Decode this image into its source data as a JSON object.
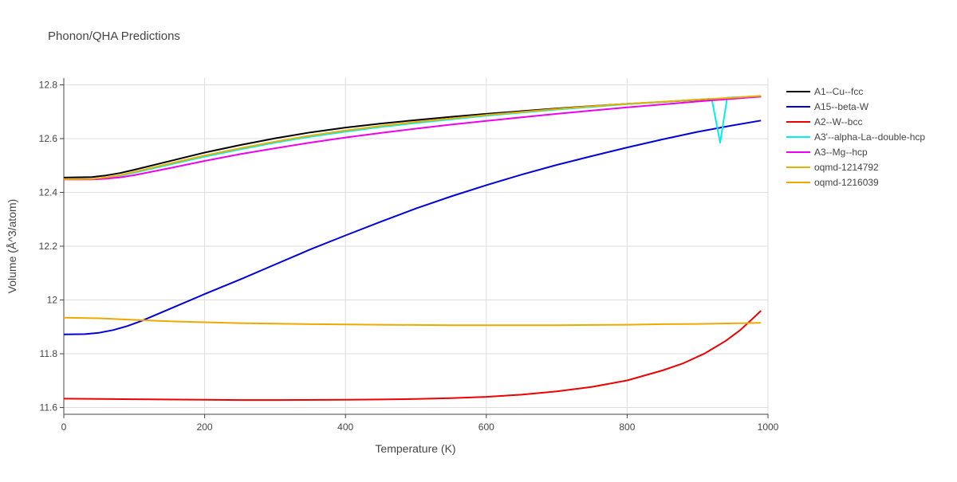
{
  "chart_data": {
    "type": "line",
    "title": "Phonon/QHA Predictions",
    "xlabel": "Temperature (K)",
    "ylabel": "Volume (Å^3/atom)",
    "xlim": [
      0,
      1000
    ],
    "ylim": [
      11.575,
      12.825
    ],
    "x_ticks": [
      0,
      200,
      400,
      600,
      800,
      1000
    ],
    "y_ticks": [
      11.6,
      11.8,
      12,
      12.2,
      12.4,
      12.6,
      12.8
    ],
    "x_tick_labels": [
      "0",
      "200",
      "400",
      "600",
      "800",
      "1000"
    ],
    "y_tick_labels": [
      "11.6",
      "11.8",
      "12",
      "12.2",
      "12.4",
      "12.6",
      "12.8"
    ],
    "grid": true,
    "legend_position": "right",
    "series": [
      {
        "name": "A1--Cu--fcc",
        "color": "#000000",
        "x": [
          0,
          40,
          60,
          80,
          100,
          150,
          200,
          250,
          300,
          350,
          400,
          450,
          500,
          550,
          600,
          650,
          700,
          750,
          800,
          850,
          900,
          950,
          990
        ],
        "y": [
          12.455,
          12.457,
          12.463,
          12.472,
          12.484,
          12.516,
          12.548,
          12.576,
          12.601,
          12.623,
          12.641,
          12.656,
          12.669,
          12.681,
          12.692,
          12.702,
          12.712,
          12.721,
          12.729,
          12.736,
          12.744,
          12.751,
          12.757
        ]
      },
      {
        "name": "A15--beta-W",
        "color": "#0000dd",
        "x": [
          0,
          30,
          50,
          70,
          90,
          110,
          140,
          200,
          250,
          300,
          350,
          400,
          450,
          500,
          550,
          600,
          650,
          700,
          750,
          800,
          850,
          900,
          950,
          990
        ],
        "y": [
          11.872,
          11.873,
          11.878,
          11.888,
          11.903,
          11.922,
          11.955,
          12.022,
          12.076,
          12.132,
          12.188,
          12.24,
          12.291,
          12.34,
          12.385,
          12.427,
          12.466,
          12.502,
          12.535,
          12.567,
          12.597,
          12.625,
          12.649,
          12.667
        ]
      },
      {
        "name": "A2--W--bcc",
        "color": "#ee0000",
        "x": [
          0,
          100,
          200,
          250,
          300,
          400,
          450,
          500,
          550,
          600,
          650,
          700,
          750,
          800,
          850,
          880,
          910,
          940,
          960,
          980,
          990
        ],
        "y": [
          11.633,
          11.631,
          11.629,
          11.628,
          11.628,
          11.629,
          11.63,
          11.632,
          11.635,
          11.64,
          11.648,
          11.66,
          11.677,
          11.701,
          11.738,
          11.765,
          11.801,
          11.848,
          11.887,
          11.935,
          11.96
        ]
      },
      {
        "name": "A3'--alpha-La--double-hcp",
        "color": "#00eeee",
        "x": [
          0,
          40,
          60,
          80,
          100,
          150,
          200,
          250,
          300,
          350,
          400,
          450,
          500,
          550,
          600,
          650,
          700,
          750,
          800,
          850,
          900,
          920,
          932,
          942,
          950,
          990
        ],
        "y": [
          12.449,
          12.45,
          12.455,
          12.462,
          12.473,
          12.503,
          12.533,
          12.56,
          12.585,
          12.607,
          12.626,
          12.643,
          12.658,
          12.672,
          12.685,
          12.697,
          12.708,
          12.718,
          12.728,
          12.736,
          12.745,
          12.748,
          12.585,
          12.752,
          12.753,
          12.758
        ]
      },
      {
        "name": "A3--Mg--hcp",
        "color": "#ee00ee",
        "x": [
          0,
          40,
          60,
          80,
          100,
          150,
          200,
          250,
          300,
          350,
          400,
          450,
          500,
          550,
          600,
          650,
          700,
          750,
          800,
          850,
          900,
          950,
          990
        ],
        "y": [
          12.448,
          12.448,
          12.451,
          12.456,
          12.464,
          12.49,
          12.517,
          12.542,
          12.564,
          12.585,
          12.604,
          12.621,
          12.637,
          12.652,
          12.666,
          12.679,
          12.692,
          12.704,
          12.716,
          12.727,
          12.738,
          12.748,
          12.756
        ]
      },
      {
        "name": "oqmd-1214792",
        "color": "#e8b000",
        "x": [
          0,
          40,
          60,
          80,
          100,
          150,
          200,
          250,
          300,
          350,
          400,
          450,
          500,
          550,
          600,
          650,
          700,
          750,
          800,
          850,
          900,
          950,
          990
        ],
        "y": [
          12.449,
          12.45,
          12.456,
          12.464,
          12.476,
          12.507,
          12.537,
          12.564,
          12.589,
          12.611,
          12.63,
          12.647,
          12.662,
          12.675,
          12.688,
          12.699,
          12.71,
          12.72,
          12.729,
          12.737,
          12.745,
          12.752,
          12.759
        ]
      },
      {
        "name": "oqmd-1216039",
        "color": "#f0a800",
        "x": [
          0,
          50,
          100,
          150,
          200,
          250,
          300,
          350,
          400,
          450,
          500,
          550,
          600,
          650,
          700,
          750,
          800,
          850,
          900,
          950,
          990
        ],
        "y": [
          11.934,
          11.932,
          11.926,
          11.921,
          11.917,
          11.914,
          11.912,
          11.91,
          11.909,
          11.908,
          11.907,
          11.906,
          11.906,
          11.906,
          11.906,
          11.907,
          11.908,
          11.91,
          11.911,
          11.913,
          11.915
        ]
      }
    ]
  }
}
